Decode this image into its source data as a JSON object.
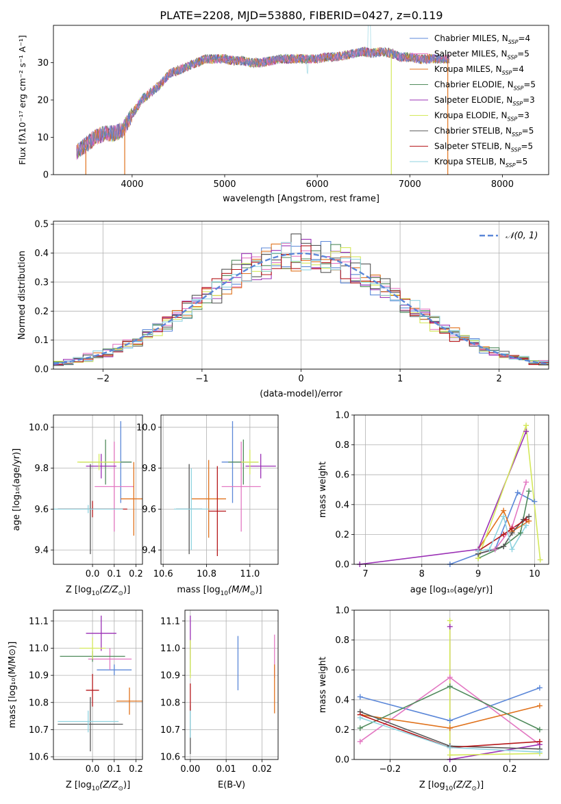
{
  "colors": {
    "chabrier_miles": "#5b87d8",
    "salpeter_miles": "#e377c2",
    "kroupa_miles": "#e0721c",
    "chabrier_elodie": "#4f8a5b",
    "salpeter_elodie": "#9a2fb5",
    "kroupa_elodie": "#d4e85a",
    "chabrier_stelib": "#555555",
    "salpeter_stelib": "#b5171a",
    "kroupa_stelib": "#8fd3e0",
    "normal": "#5b87d8",
    "grid": "#b0b0b0"
  },
  "chart_data": [
    {
      "id": "spectrum",
      "type": "line",
      "title": "PLATE=2208, MJD=53880, FIBERID=0427, z=0.119",
      "xlabel": "wavelength [Angstrom, rest frame]",
      "ylabel": "Flux [fλ10⁻¹⁷ erg cm⁻² s⁻¹ A⁻¹]",
      "xlim": [
        3150,
        8500
      ],
      "ylim": [
        0,
        40
      ],
      "xticks": [
        4000,
        5000,
        6000,
        7000,
        8000
      ],
      "yticks": [
        0,
        10,
        20,
        30
      ],
      "grid": false,
      "legend_position": "right",
      "data_range": [
        3400,
        7430
      ],
      "continuum": {
        "x": [
          3400,
          3500,
          3600,
          3700,
          3800,
          3900,
          4000,
          4100,
          4200,
          4300,
          4400,
          4500,
          4600,
          4700,
          4800,
          4900,
          5000,
          5100,
          5200,
          5300,
          5400,
          5500,
          5600,
          5700,
          5800,
          5900,
          6000,
          6100,
          6200,
          6300,
          6400,
          6500,
          6600,
          6700,
          6800,
          6900,
          7000,
          7100,
          7200,
          7300,
          7400
        ],
        "y": [
          6,
          8,
          10,
          11,
          11,
          12,
          16,
          20,
          22,
          24,
          27,
          28,
          29,
          30,
          31,
          31,
          31,
          30.5,
          30.5,
          30,
          30,
          30.5,
          31,
          31,
          31,
          31,
          31,
          31.5,
          31.5,
          32,
          32.5,
          33,
          32.5,
          33,
          32.5,
          31.5,
          31.5,
          31,
          31,
          31,
          31
        ]
      },
      "series": [
        {
          "name": "Chabrier MILES, N",
          "sub": "SSP",
          "suffix": "=4",
          "color_key": "chabrier_miles"
        },
        {
          "name": "Salpeter MILES, N",
          "sub": "SSP",
          "suffix": "=5",
          "color_key": "salpeter_miles"
        },
        {
          "name": "Kroupa MILES, N",
          "sub": "SSP",
          "suffix": "=4",
          "color_key": "kroupa_miles"
        },
        {
          "name": "Chabrier ELODIE, N",
          "sub": "SSP",
          "suffix": "=5",
          "color_key": "chabrier_elodie"
        },
        {
          "name": "Salpeter ELODIE, N",
          "sub": "SSP",
          "suffix": "=3",
          "color_key": "salpeter_elodie"
        },
        {
          "name": "Kroupa ELODIE, N",
          "sub": "SSP",
          "suffix": "=3",
          "color_key": "kroupa_elodie"
        },
        {
          "name": "Chabrier STELIB, N",
          "sub": "SSP",
          "suffix": "=5",
          "color_key": "chabrier_stelib"
        },
        {
          "name": "Salpeter STELIB, N",
          "sub": "SSP",
          "suffix": "=5",
          "color_key": "salpeter_stelib"
        },
        {
          "name": "Kroupa STELIB, N",
          "sub": "SSP",
          "suffix": "=5",
          "color_key": "kroupa_stelib"
        }
      ],
      "vertical_drops": [
        {
          "x": 3500,
          "color_key": "kroupa_miles"
        },
        {
          "x": 3920,
          "color_key": "kroupa_miles"
        },
        {
          "x": 6800,
          "color_key": "kroupa_elodie"
        },
        {
          "x": 7410,
          "color_key": "kroupa_miles"
        }
      ]
    },
    {
      "id": "residuals",
      "type": "histogram",
      "xlabel": "(data-model)/error",
      "ylabel": "Normed distribution",
      "xlim": [
        -2.5,
        2.5
      ],
      "ylim": [
        0,
        0.51
      ],
      "xticks": [
        -2,
        -1,
        0,
        1,
        2
      ],
      "yticks": [
        0.0,
        0.1,
        0.2,
        0.3,
        0.4,
        0.5
      ],
      "grid": true,
      "bin_width": 0.1,
      "legend": "𝒩(0, 1)",
      "legend_position": "top-right"
    },
    {
      "id": "age_vs_z",
      "type": "errorbar",
      "xlabel_main": "Z [log",
      "xlabel_sub": "10",
      "xlabel_rest": "(Z/Z",
      "xlabel_sub2": "⊙",
      "xlabel_end": ")]",
      "ylabel": "age  [log₁₀(age/yr)]",
      "xlim": [
        -0.18,
        0.23
      ],
      "ylim": [
        9.33,
        10.06
      ],
      "xticks": [
        0.0,
        0.1,
        0.2
      ],
      "yticks": [
        9.4,
        9.6,
        9.8,
        10.0
      ],
      "grid": true,
      "points": [
        {
          "x": 0.13,
          "xerr": 0.05,
          "y": 9.83,
          "yerr": 0.2,
          "color_key": "chabrier_miles"
        },
        {
          "x": 0.1,
          "xerr": 0.09,
          "y": 9.71,
          "yerr": 0.22,
          "color_key": "salpeter_miles"
        },
        {
          "x": 0.19,
          "xerr": 0.06,
          "y": 9.65,
          "yerr": 0.18,
          "color_key": "kroupa_miles"
        },
        {
          "x": 0.06,
          "xerr": 0.12,
          "y": 9.83,
          "yerr": 0.11,
          "color_key": "chabrier_elodie"
        },
        {
          "x": 0.04,
          "xerr": 0.07,
          "y": 9.81,
          "yerr": 0.06,
          "color_key": "salpeter_elodie"
        },
        {
          "x": 0.03,
          "xerr": 0.1,
          "y": 9.83,
          "yerr": 0.04,
          "color_key": "kroupa_elodie"
        },
        {
          "x": -0.01,
          "xerr": 0.15,
          "y": 9.6,
          "yerr": 0.22,
          "color_key": "chabrier_stelib"
        },
        {
          "x": 0.0,
          "xerr": 0.16,
          "y": 9.6,
          "yerr": 0.04,
          "color_key": "salpeter_stelib"
        },
        {
          "x": -0.02,
          "xerr": 0.16,
          "y": 9.6,
          "yerr": 0.02,
          "color_key": "kroupa_stelib"
        }
      ]
    },
    {
      "id": "age_vs_mass",
      "type": "errorbar",
      "xlabel_main": "mass [log",
      "xlabel_sub": "10",
      "xlabel_rest": "(M/M",
      "xlabel_sub2": "⊙",
      "xlabel_end": ")]",
      "ylabel": "",
      "xlim": [
        10.59,
        11.13
      ],
      "ylim": [
        9.33,
        10.06
      ],
      "xticks": [
        10.6,
        10.8,
        11.0
      ],
      "yticks": [
        9.4,
        9.6,
        9.8,
        10.0
      ],
      "grid": true,
      "points": [
        {
          "x": 10.92,
          "xerr": 0.05,
          "y": 9.83,
          "yerr": 0.2,
          "color_key": "chabrier_miles"
        },
        {
          "x": 10.96,
          "xerr": 0.09,
          "y": 9.71,
          "yerr": 0.22,
          "color_key": "salpeter_miles"
        },
        {
          "x": 10.81,
          "xerr": 0.08,
          "y": 9.65,
          "yerr": 0.19,
          "color_key": "kroupa_miles"
        },
        {
          "x": 10.97,
          "xerr": 0.07,
          "y": 9.83,
          "yerr": 0.11,
          "color_key": "chabrier_elodie"
        },
        {
          "x": 11.05,
          "xerr": 0.07,
          "y": 9.81,
          "yerr": 0.06,
          "color_key": "salpeter_elodie"
        },
        {
          "x": 11.0,
          "xerr": 0.04,
          "y": 9.83,
          "yerr": 0.06,
          "color_key": "kroupa_elodie"
        },
        {
          "x": 10.72,
          "xerr": 0.06,
          "y": 9.6,
          "yerr": 0.22,
          "color_key": "chabrier_stelib"
        },
        {
          "x": 10.85,
          "xerr": 0.04,
          "y": 9.59,
          "yerr": 0.22,
          "color_key": "salpeter_stelib"
        },
        {
          "x": 10.73,
          "xerr": 0.08,
          "y": 9.6,
          "yerr": 0.2,
          "color_key": "kroupa_stelib"
        }
      ]
    },
    {
      "id": "weight_vs_age",
      "type": "line",
      "xlabel": "age  [log₁₀(age/yr)]",
      "ylabel": "mass weight",
      "xlim": [
        6.8,
        10.25
      ],
      "ylim": [
        0,
        1.0
      ],
      "xticks": [
        7,
        8,
        9,
        10
      ],
      "yticks": [
        0.0,
        0.2,
        0.4,
        0.6,
        0.8,
        1.0
      ],
      "grid": true,
      "series": [
        {
          "color_key": "chabrier_miles",
          "x": [
            8.5,
            9.0,
            9.3,
            9.7,
            10.0
          ],
          "y": [
            0.0,
            0.07,
            0.1,
            0.48,
            0.42
          ]
        },
        {
          "color_key": "salpeter_miles",
          "x": [
            9.0,
            9.3,
            9.6,
            9.85
          ],
          "y": [
            0.07,
            0.1,
            0.25,
            0.55
          ]
        },
        {
          "color_key": "kroupa_miles",
          "x": [
            9.0,
            9.45,
            9.6,
            9.9
          ],
          "y": [
            0.1,
            0.36,
            0.22,
            0.29
          ]
        },
        {
          "color_key": "chabrier_elodie",
          "x": [
            9.0,
            9.45,
            9.75,
            9.9
          ],
          "y": [
            0.04,
            0.12,
            0.21,
            0.49
          ]
        },
        {
          "color_key": "salpeter_elodie",
          "x": [
            6.9,
            9.0,
            9.85
          ],
          "y": [
            0.0,
            0.1,
            0.89
          ]
        },
        {
          "color_key": "kroupa_elodie",
          "x": [
            9.0,
            9.85,
            10.1
          ],
          "y": [
            0.04,
            0.93,
            0.03
          ]
        },
        {
          "color_key": "chabrier_stelib",
          "x": [
            9.0,
            9.45,
            9.6,
            9.8,
            9.9
          ],
          "y": [
            0.07,
            0.12,
            0.21,
            0.3,
            0.32
          ]
        },
        {
          "color_key": "salpeter_stelib",
          "x": [
            9.0,
            9.45,
            9.6,
            9.85
          ],
          "y": [
            0.09,
            0.2,
            0.24,
            0.3
          ]
        },
        {
          "color_key": "kroupa_stelib",
          "x": [
            9.0,
            9.2,
            9.45,
            9.6,
            9.85
          ],
          "y": [
            0.09,
            0.1,
            0.32,
            0.1,
            0.26
          ]
        }
      ]
    },
    {
      "id": "mass_vs_z",
      "type": "errorbar",
      "xlabel_main": "Z [log",
      "xlabel_sub": "10",
      "xlabel_rest": "(Z/Z",
      "xlabel_sub2": "⊙",
      "xlabel_end": ")]",
      "ylabel": "mass [log₁₀(M/M⊙)]",
      "xlim": [
        -0.18,
        0.23
      ],
      "ylim": [
        10.59,
        11.14
      ],
      "xticks": [
        0.0,
        0.1,
        0.2
      ],
      "yticks": [
        10.6,
        10.7,
        10.8,
        10.9,
        11.0,
        11.1
      ],
      "grid": true,
      "points": [
        {
          "x": 0.1,
          "xerr": 0.08,
          "y": 10.92,
          "yerr": 0.02,
          "color_key": "chabrier_miles"
        },
        {
          "x": 0.08,
          "xerr": 0.1,
          "y": 10.96,
          "yerr": 0.04,
          "color_key": "salpeter_miles"
        },
        {
          "x": 0.17,
          "xerr": 0.06,
          "y": 10.805,
          "yerr": 0.05,
          "color_key": "kroupa_miles"
        },
        {
          "x": 0.0,
          "xerr": 0.15,
          "y": 10.97,
          "yerr": 0.02,
          "color_key": "chabrier_elodie"
        },
        {
          "x": 0.04,
          "xerr": 0.07,
          "y": 11.055,
          "yerr": 0.065,
          "color_key": "salpeter_elodie"
        },
        {
          "x": 0.0,
          "xerr": 0.06,
          "y": 11.0,
          "yerr": 0.04,
          "color_key": "kroupa_elodie"
        },
        {
          "x": -0.01,
          "xerr": 0.15,
          "y": 10.72,
          "yerr": 0.1,
          "color_key": "chabrier_stelib"
        },
        {
          "x": 0.0,
          "xerr": 0.03,
          "y": 10.845,
          "yerr": 0.06,
          "color_key": "salpeter_stelib"
        },
        {
          "x": -0.02,
          "xerr": 0.14,
          "y": 10.73,
          "yerr": 0.04,
          "color_key": "kroupa_stelib"
        }
      ]
    },
    {
      "id": "mass_vs_ebv",
      "type": "errorbar",
      "xlabel_main": "E(B-V)",
      "ylabel": "",
      "xlim": [
        -0.0015,
        0.0245
      ],
      "ylim": [
        10.59,
        11.14
      ],
      "xticks": [
        0.0,
        0.01,
        0.02
      ],
      "yticks": [
        10.6,
        10.7,
        10.8,
        10.9,
        11.0,
        11.1
      ],
      "grid": true,
      "points": [
        {
          "x": 0.0133,
          "xerr": 0,
          "y": 10.945,
          "yerr": 0.1,
          "color_key": "chabrier_miles"
        },
        {
          "x": 0.0235,
          "xerr": 0,
          "y": 10.97,
          "yerr": 0.08,
          "color_key": "salpeter_miles"
        },
        {
          "x": 0.0235,
          "xerr": 0,
          "y": 10.85,
          "yerr": 0.09,
          "color_key": "kroupa_miles"
        },
        {
          "x": 0.0,
          "xerr": 0,
          "y": 10.97,
          "yerr": 0.06,
          "color_key": "chabrier_elodie"
        },
        {
          "x": 0.0,
          "xerr": 0,
          "y": 11.04,
          "yerr": 0.08,
          "color_key": "salpeter_elodie"
        },
        {
          "x": 0.0,
          "xerr": 0,
          "y": 10.96,
          "yerr": 0.07,
          "color_key": "kroupa_elodie"
        },
        {
          "x": 0.0,
          "xerr": 0,
          "y": 10.7,
          "yerr": 0.09,
          "color_key": "chabrier_stelib"
        },
        {
          "x": 0.0,
          "xerr": 0,
          "y": 10.82,
          "yerr": 0.05,
          "color_key": "salpeter_stelib"
        },
        {
          "x": 0.0,
          "xerr": 0,
          "y": 10.72,
          "yerr": 0.05,
          "color_key": "kroupa_stelib"
        }
      ]
    },
    {
      "id": "weight_vs_z",
      "type": "line",
      "xlabel_main": "Z [log",
      "xlabel_sub": "10",
      "xlabel_rest": "(Z/Z",
      "xlabel_sub2": "⊙",
      "xlabel_end": ")]",
      "ylabel": "mass weight",
      "xlim": [
        -0.32,
        0.33
      ],
      "ylim": [
        0,
        1.0
      ],
      "xticks": [
        -0.2,
        0.0,
        0.2
      ],
      "yticks": [
        0.0,
        0.2,
        0.4,
        0.6,
        0.8,
        1.0
      ],
      "grid": true,
      "series": [
        {
          "color_key": "chabrier_miles",
          "x": [
            -0.3,
            0.0,
            0.3
          ],
          "y": [
            0.42,
            0.26,
            0.48
          ]
        },
        {
          "color_key": "salpeter_miles",
          "x": [
            -0.3,
            0.0,
            0.3
          ],
          "y": [
            0.12,
            0.55,
            0.1
          ]
        },
        {
          "color_key": "kroupa_miles",
          "x": [
            -0.3,
            0.0,
            0.3
          ],
          "y": [
            0.3,
            0.21,
            0.36
          ]
        },
        {
          "color_key": "chabrier_elodie",
          "x": [
            -0.3,
            0.0,
            0.3
          ],
          "y": [
            0.21,
            0.49,
            0.2
          ]
        },
        {
          "color_key": "salpeter_elodie",
          "x": [
            0.0,
            0.0,
            0.3
          ],
          "y": [
            0.89,
            0.0,
            0.1
          ]
        },
        {
          "color_key": "kroupa_elodie",
          "x": [
            0.0,
            0.0,
            0.3
          ],
          "y": [
            0.93,
            0.03,
            0.04
          ]
        },
        {
          "color_key": "chabrier_stelib",
          "x": [
            -0.3,
            0.0,
            0.3
          ],
          "y": [
            0.32,
            0.09,
            0.07
          ]
        },
        {
          "color_key": "salpeter_stelib",
          "x": [
            -0.3,
            0.0,
            0.3
          ],
          "y": [
            0.3,
            0.08,
            0.12
          ]
        },
        {
          "color_key": "kroupa_stelib",
          "x": [
            -0.3,
            0.0,
            0.3
          ],
          "y": [
            0.28,
            0.08,
            0.05
          ]
        }
      ]
    }
  ]
}
